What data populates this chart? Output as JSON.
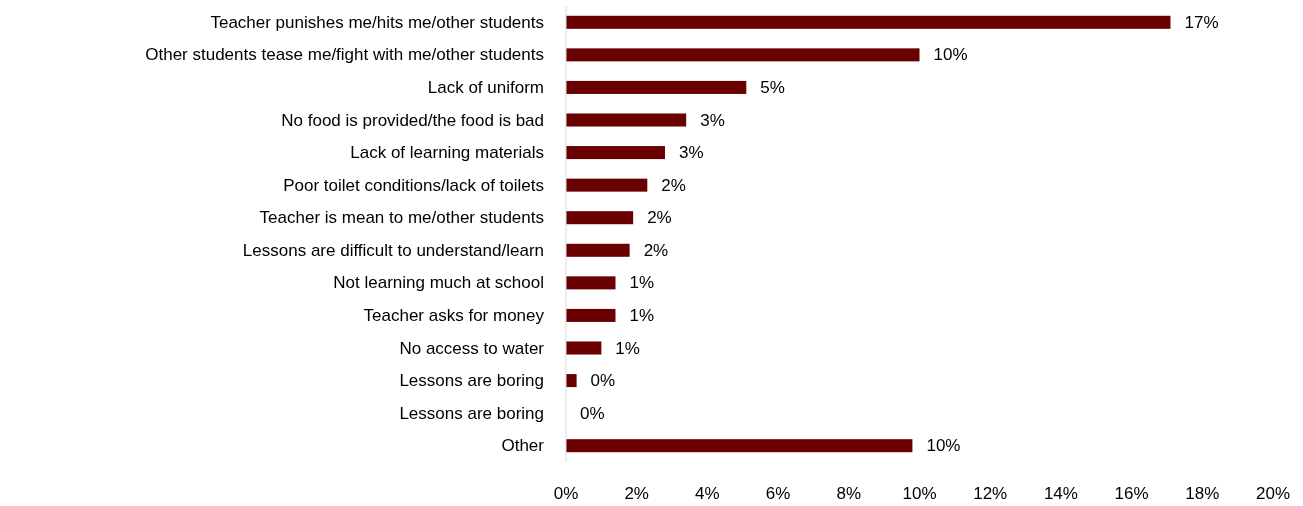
{
  "chart_data": {
    "type": "bar",
    "orientation": "horizontal",
    "categories": [
      "Teacher punishes me/hits me/other students",
      "Other students tease me/fight with me/other students",
      "Lack of uniform",
      "No food is provided/the food is bad",
      "Lack of learning materials",
      "Poor toilet conditions/lack of toilets",
      "Teacher is mean to me/other students",
      "Lessons are difficult to understand/learn",
      "Not learning much at school",
      "Teacher asks for money",
      "No access to water",
      "Lessons are boring",
      "Lessons are boring",
      "Other"
    ],
    "values": [
      17.1,
      10.0,
      5.1,
      3.4,
      2.8,
      2.3,
      1.9,
      1.8,
      1.4,
      1.4,
      1.0,
      0.3,
      0,
      9.8
    ],
    "value_labels": [
      "17%",
      "10%",
      "5%",
      "3%",
      "3%",
      "2%",
      "2%",
      "2%",
      "1%",
      "1%",
      "1%",
      "0%",
      "0%",
      "10%"
    ],
    "color": "#6b0000",
    "xlim": [
      0,
      20
    ],
    "xticks": [
      {
        "value": 0,
        "label": "0%"
      },
      {
        "value": 2,
        "label": "2%"
      },
      {
        "value": 4,
        "label": "4%"
      },
      {
        "value": 6,
        "label": "6%"
      },
      {
        "value": 8,
        "label": "8%"
      },
      {
        "value": 10,
        "label": "10%"
      },
      {
        "value": 12,
        "label": "12%"
      },
      {
        "value": 14,
        "label": "14%"
      },
      {
        "value": 16,
        "label": "16%"
      },
      {
        "value": 18,
        "label": "18%"
      },
      {
        "value": 20,
        "label": "20%"
      }
    ]
  }
}
